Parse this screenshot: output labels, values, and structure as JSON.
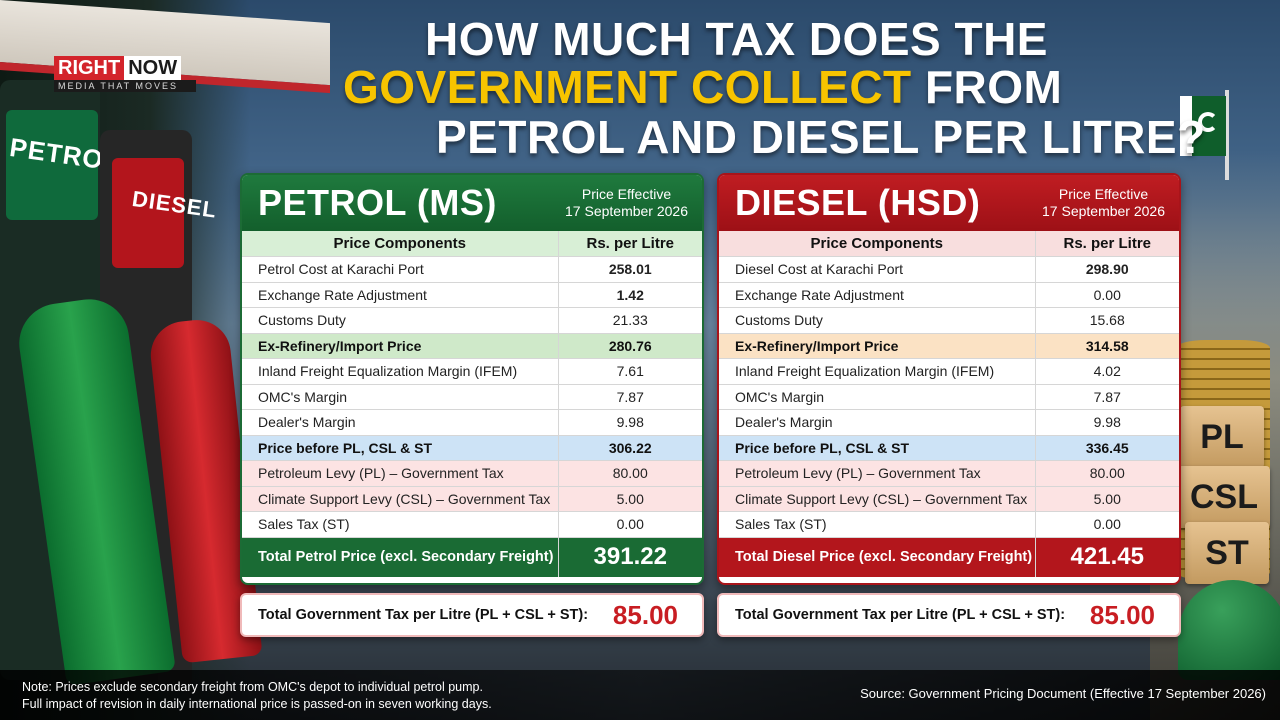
{
  "logo": {
    "word1": "RIGHT",
    "word2": "NOW",
    "tagline": "MEDIA THAT MOVES"
  },
  "headline": {
    "line1": "HOW MUCH TAX DOES THE",
    "line2_highlight": "GOVERNMENT COLLECT",
    "line2_rest": " FROM",
    "line3": "PETROL AND DIESEL PER LITRE?"
  },
  "background": {
    "pump_petrol_label": "PETROL",
    "pump_diesel_label": "DIESEL",
    "blocks": [
      "PL",
      "CSL",
      "ST"
    ]
  },
  "colors": {
    "petrol_green": "#1a6b34",
    "diesel_red": "#b3161c",
    "headline_yellow": "#f7c400",
    "tax_value_red": "#c81d22"
  },
  "petrol": {
    "title": "PETROL (MS)",
    "effective_line1": "Price Effective",
    "effective_line2": "17 September 2026",
    "header_component": "Price Components",
    "header_value": "Rs. per Litre",
    "rows": [
      {
        "label": "Petrol Cost at Karachi Port",
        "value": "258.01"
      },
      {
        "label": "Exchange Rate Adjustment",
        "value": "1.42"
      },
      {
        "label": "Customs Duty",
        "value": "21.33"
      },
      {
        "label": "Ex-Refinery/Import Price",
        "value": "280.76"
      },
      {
        "label": "Inland Freight Equalization Margin (IFEM)",
        "value": "7.61"
      },
      {
        "label": "OMC's Margin",
        "value": "7.87"
      },
      {
        "label": "Dealer's Margin",
        "value": "9.98"
      },
      {
        "label": "Price before PL, CSL & ST",
        "value": "306.22"
      },
      {
        "label": "Petroleum Levy (PL) – Government Tax",
        "value": "80.00"
      },
      {
        "label": "Climate Support Levy (CSL) – Government Tax",
        "value": "5.00"
      },
      {
        "label": "Sales Tax (ST)",
        "value": "0.00"
      }
    ],
    "total_label": "Total Petrol Price (excl. Secondary Freight)",
    "total_value": "391.22",
    "tax_label": "Total Government Tax per Litre (PL + CSL + ST):",
    "tax_value": "85.00"
  },
  "diesel": {
    "title": "DIESEL (HSD)",
    "effective_line1": "Price Effective",
    "effective_line2": "17 September 2026",
    "header_component": "Price Components",
    "header_value": "Rs. per Litre",
    "rows": [
      {
        "label": "Diesel Cost at Karachi Port",
        "value": "298.90"
      },
      {
        "label": "Exchange Rate Adjustment",
        "value": "0.00"
      },
      {
        "label": "Customs Duty",
        "value": "15.68"
      },
      {
        "label": "Ex-Refinery/Import Price",
        "value": "314.58"
      },
      {
        "label": "Inland Freight Equalization Margin (IFEM)",
        "value": "4.02"
      },
      {
        "label": "OMC's Margin",
        "value": "7.87"
      },
      {
        "label": "Dealer's Margin",
        "value": "9.98"
      },
      {
        "label": "Price before PL, CSL & ST",
        "value": "336.45"
      },
      {
        "label": "Petroleum Levy (PL) – Government Tax",
        "value": "80.00"
      },
      {
        "label": "Climate Support Levy (CSL) – Government Tax",
        "value": "5.00"
      },
      {
        "label": "Sales Tax (ST)",
        "value": "0.00"
      }
    ],
    "total_label": "Total Diesel Price (excl. Secondary Freight)",
    "total_value": "421.45",
    "tax_label": "Total Government Tax per Litre (PL + CSL + ST):",
    "tax_value": "85.00"
  },
  "footer": {
    "note_line1": "Note: Prices exclude secondary freight from OMC's depot to individual petrol pump.",
    "note_line2": "Full impact of revision in daily international price is passed-on in seven working days.",
    "source": "Source: Government Pricing Document (Effective 17 September 2026)"
  }
}
